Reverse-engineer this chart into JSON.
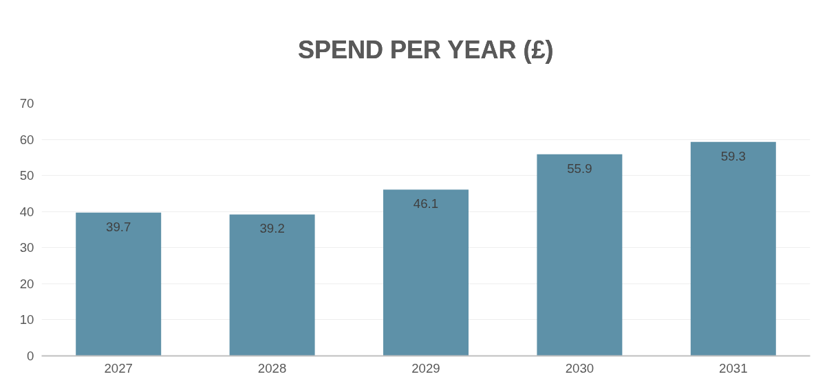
{
  "chart_data": {
    "type": "bar",
    "title": "SPEND PER YEAR (£)",
    "categories": [
      "2027",
      "2028",
      "2029",
      "2030",
      "2031"
    ],
    "values": [
      39.7,
      39.2,
      46.1,
      55.9,
      59.3
    ],
    "color": "#5e91a8",
    "ylim": [
      0,
      70
    ],
    "yticks": [
      0,
      10,
      20,
      30,
      40,
      50,
      60,
      70
    ],
    "grid": "y",
    "data_labels": true
  }
}
